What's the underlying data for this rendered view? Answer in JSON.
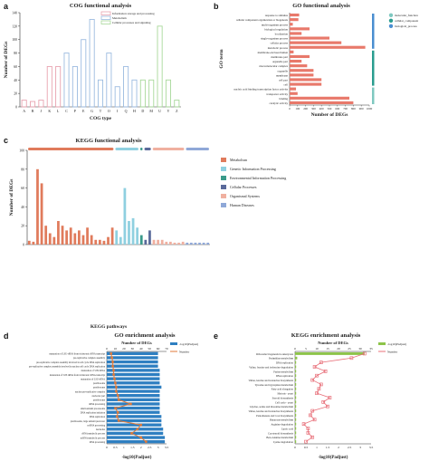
{
  "panels": {
    "a": "a",
    "b": "b",
    "c": "c",
    "d": "d",
    "e": "e"
  },
  "chart_data": [
    {
      "id": "a",
      "type": "bar",
      "title": "COG functional analysis",
      "xlabel": "COG type",
      "ylabel": "Number of DEGs",
      "ylim": [
        0,
        140
      ],
      "yticks": [
        0,
        20,
        40,
        60,
        80,
        100,
        120,
        140
      ],
      "categories": [
        "A",
        "B",
        "J",
        "K",
        "L",
        "C",
        "P",
        "E",
        "G",
        "T",
        "O",
        "I",
        "Q",
        "H",
        "D",
        "M",
        "U",
        "V",
        "Z"
      ],
      "values": [
        10,
        8,
        10,
        60,
        60,
        80,
        60,
        100,
        130,
        40,
        80,
        30,
        60,
        40,
        40,
        40,
        120,
        40,
        10
      ],
      "group_of_category": [
        0,
        0,
        0,
        0,
        0,
        1,
        1,
        1,
        1,
        1,
        1,
        1,
        1,
        1,
        2,
        2,
        2,
        2,
        2
      ],
      "legend": [
        {
          "name": "Information storage and processing",
          "color": "#e8a3b0"
        },
        {
          "name": "Metabolism",
          "color": "#9cbbe0"
        },
        {
          "name": "Cellular processes and signaling",
          "color": "#a8d89a"
        }
      ]
    },
    {
      "id": "b",
      "type": "bar",
      "orientation": "horizontal",
      "title": "GO functional analysis",
      "xlabel": "Number of DEGs",
      "ylabel": "GO term",
      "xlim": [
        0,
        1000
      ],
      "xticks": [
        0,
        100,
        200,
        300,
        400,
        500,
        600,
        700,
        800,
        900,
        1000
      ],
      "categories": [
        "response to stimulus",
        "cellular component organization or biogenesis",
        "multi-organism process",
        "biological regulation",
        "localization",
        "single-organism process",
        "cellular process",
        "metabolic process",
        "membrane-enclosed lumen",
        "membrane part",
        "organelle part",
        "macromolecular complex",
        "organelle",
        "membrane",
        "cell part",
        "cell",
        "nucleic acid binding transcription factor activity",
        "transporter activity",
        "binding",
        "catalytic activity"
      ],
      "values": [
        120,
        110,
        40,
        250,
        150,
        500,
        650,
        950,
        50,
        250,
        150,
        220,
        300,
        300,
        400,
        400,
        80,
        100,
        750,
        800
      ],
      "group_of_category": [
        0,
        0,
        0,
        0,
        0,
        0,
        0,
        0,
        1,
        1,
        1,
        1,
        1,
        1,
        1,
        1,
        2,
        2,
        2,
        2
      ],
      "legend": [
        {
          "name": "molecular_function",
          "color": "#7fc8c0"
        },
        {
          "name": "cellular_component",
          "color": "#2a9d8f"
        },
        {
          "name": "biological_process",
          "color": "#4a8ed0"
        }
      ],
      "bar_color": "#e8796b"
    },
    {
      "id": "c",
      "type": "bar",
      "title": "KEGG functional analysis",
      "xlabel": "KEGG pathways",
      "ylabel": "Number of DEGs",
      "ylim": [
        0,
        100
      ],
      "yticks": [
        0,
        20,
        40,
        60,
        80,
        100
      ],
      "values": [
        4,
        3,
        80,
        65,
        20,
        12,
        8,
        25,
        20,
        15,
        18,
        12,
        15,
        10,
        18,
        10,
        5,
        5,
        4,
        8,
        18,
        15,
        8,
        60,
        25,
        28,
        18,
        10,
        5,
        15,
        5,
        5,
        5,
        3,
        3,
        2,
        2,
        3,
        2,
        2,
        2,
        2,
        2,
        2
      ],
      "group_of_bar": [
        0,
        0,
        0,
        0,
        0,
        0,
        0,
        0,
        0,
        0,
        0,
        0,
        0,
        0,
        0,
        0,
        0,
        0,
        0,
        0,
        0,
        1,
        1,
        1,
        1,
        1,
        1,
        2,
        3,
        3,
        4,
        4,
        4,
        4,
        4,
        4,
        4,
        4,
        5,
        5,
        5,
        5,
        5,
        5
      ],
      "legend": [
        {
          "name": "Metabolism",
          "color": "#e07b5c"
        },
        {
          "name": "Genetic Information Processing",
          "color": "#8fd0e0"
        },
        {
          "name": "Environmental Information Processing",
          "color": "#3a9a8a"
        },
        {
          "name": "Cellular Processes",
          "color": "#5a6a9a"
        },
        {
          "name": "Organismal Systems",
          "color": "#f0b0a0"
        },
        {
          "name": "Human Diseases",
          "color": "#8fa8d8"
        }
      ]
    },
    {
      "id": "d",
      "type": "bar",
      "orientation": "horizontal",
      "title": "GO enrichment analysis",
      "top_axis_label": "Number of DEGs",
      "top_ticks": [
        0,
        10,
        20,
        30,
        40,
        50,
        60,
        70
      ],
      "xlabel": "-log10(Padjust)",
      "bottom_ticks": [
        "0",
        "0.5",
        "1",
        "1.5",
        "2",
        "2.5",
        "3",
        "3.5"
      ],
      "xlim": [
        0,
        3.5
      ],
      "categories": [
        "maturation of LSU-rRNA from tricistronic rRNA transcript",
        "pre-replicative complex assembly",
        "pre-replicative complex assembly involved in cell cycle DNA replication",
        "pre-replicative complex assembly involved in nuclear cell cycle DNA replication",
        "maturation of 5.8S rRNA",
        "maturation of 5.8S rRNA from tricistronic rRNA transcript",
        "maturation of LSU-rRNA",
        "preribosome",
        "preribosome",
        "nuclear pre-replicative complex",
        "nucleolar part",
        "preribosome",
        "rRNA processing",
        "small-subunit processome",
        "DNA replication initiation",
        "DNA replication",
        "preribosome, large subunit precursor",
        "ncRNA processing",
        "nucleolus",
        "rRNA metabolic process",
        "ncRNA metabolic process",
        "RNA processing"
      ],
      "values": [
        3.0,
        3.0,
        3.0,
        3.0,
        3.1,
        3.1,
        3.1,
        3.1,
        3.2,
        3.1,
        3.1,
        3.1,
        3.1,
        3.1,
        3.1,
        3.2,
        3.2,
        3.2,
        3.3,
        3.3,
        3.4,
        3.4
      ],
      "number": [
        5,
        6,
        7,
        7,
        8,
        8,
        9,
        10,
        11,
        11,
        13,
        14,
        28,
        10,
        13,
        12,
        14,
        40,
        36,
        29,
        40,
        46
      ],
      "legend": [
        {
          "name": "-log10(Padjust)",
          "color": "#2e7fc1"
        },
        {
          "name": "Number",
          "color": "#e07a3a"
        }
      ]
    },
    {
      "id": "e",
      "type": "bar",
      "orientation": "horizontal",
      "title": "KEGG enrichment analysis",
      "top_axis_label": "Number of DEGs",
      "top_ticks": [
        0,
        5,
        10,
        15,
        20,
        25,
        30,
        35
      ],
      "xlabel": "-log10(Padjust)",
      "bottom_ticks": [
        "0",
        "0.5",
        "1",
        "1.5",
        "2",
        "2.5",
        "3",
        "3.5"
      ],
      "xlim": [
        0,
        3.5
      ],
      "categories": [
        "Ribosome biogenesis in eukaryotes",
        "Pyrimidine metabolism",
        "DNA replication",
        "Valine, leucine and isoleucine degradation",
        "Purine metabolism",
        "DNA replication",
        "Valine, leucine and isoleucine biosynthesis",
        "Tyrosine and tryptophan metabolism",
        "Fatty acid elongation",
        "Meiosis - yeast",
        "Steroid biosynthesis",
        "Cell cycle - yeast",
        "Glycine, serine and threonine metabolism",
        "Valine, leucine and isoleucine biosynthesis",
        "Pantothenate and CoA biosynthesis",
        "Butanoate metabolism",
        "Arginine degradation",
        "Lipoic acid",
        "Carotenoid biosynthesis",
        "Beta-Alanine metabolism",
        "Lysine degradation"
      ],
      "values": [
        3.2,
        0.1,
        0.05,
        0.05,
        0.05,
        0.05,
        0.05,
        0.05,
        0.05,
        0.05,
        0.05,
        0.05,
        0.05,
        0.05,
        0.05,
        0.05,
        0.05,
        0.05,
        0.05,
        0.05,
        0.05
      ],
      "number": [
        32,
        26,
        12,
        9,
        14,
        10,
        8,
        12,
        11,
        10,
        16,
        13,
        15,
        8,
        7,
        9,
        4,
        6,
        6,
        8,
        5
      ],
      "legend": [
        {
          "name": "-log10(Padjust)",
          "color": "#8dc44a"
        },
        {
          "name": "Number",
          "color": "#e8707a"
        }
      ]
    }
  ]
}
